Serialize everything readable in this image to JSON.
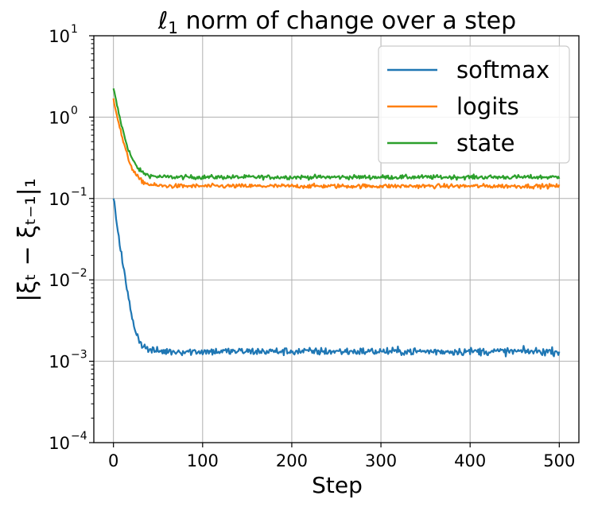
{
  "chart_data": {
    "type": "line",
    "title_main": "ℓ",
    "title_sub": "1",
    "title_rest": " norm of change over a step",
    "xlabel": "Step",
    "ylabel": "|ξₜ − ξₜ₋₁|₁",
    "xlim": [
      -22,
      522
    ],
    "ylim": [
      0.0001,
      10
    ],
    "yscale": "log",
    "grid": true,
    "legend_position": "top-right",
    "x_ticks": [
      "0",
      "100",
      "200",
      "300",
      "400",
      "500"
    ],
    "y_ticks": [
      {
        "base": "10",
        "exp": "1"
      },
      {
        "base": "10",
        "exp": "0"
      },
      {
        "base": "10",
        "exp": "−1"
      },
      {
        "base": "10",
        "exp": "−2"
      },
      {
        "base": "10",
        "exp": "−3"
      },
      {
        "base": "10",
        "exp": "−4"
      }
    ],
    "series": [
      {
        "name": "softmax",
        "color": "#1f77b4",
        "start": 0.1,
        "plateau": 0.00132,
        "tau": 5.5,
        "noise": 0.045
      },
      {
        "name": "logits",
        "color": "#ff7f0e",
        "start": 1.7,
        "plateau": 0.142,
        "tau": 7.5,
        "noise": 0.025
      },
      {
        "name": "state",
        "color": "#2ca02c",
        "start": 2.25,
        "plateau": 0.183,
        "tau": 7.5,
        "noise": 0.025
      }
    ],
    "steps": 500
  }
}
